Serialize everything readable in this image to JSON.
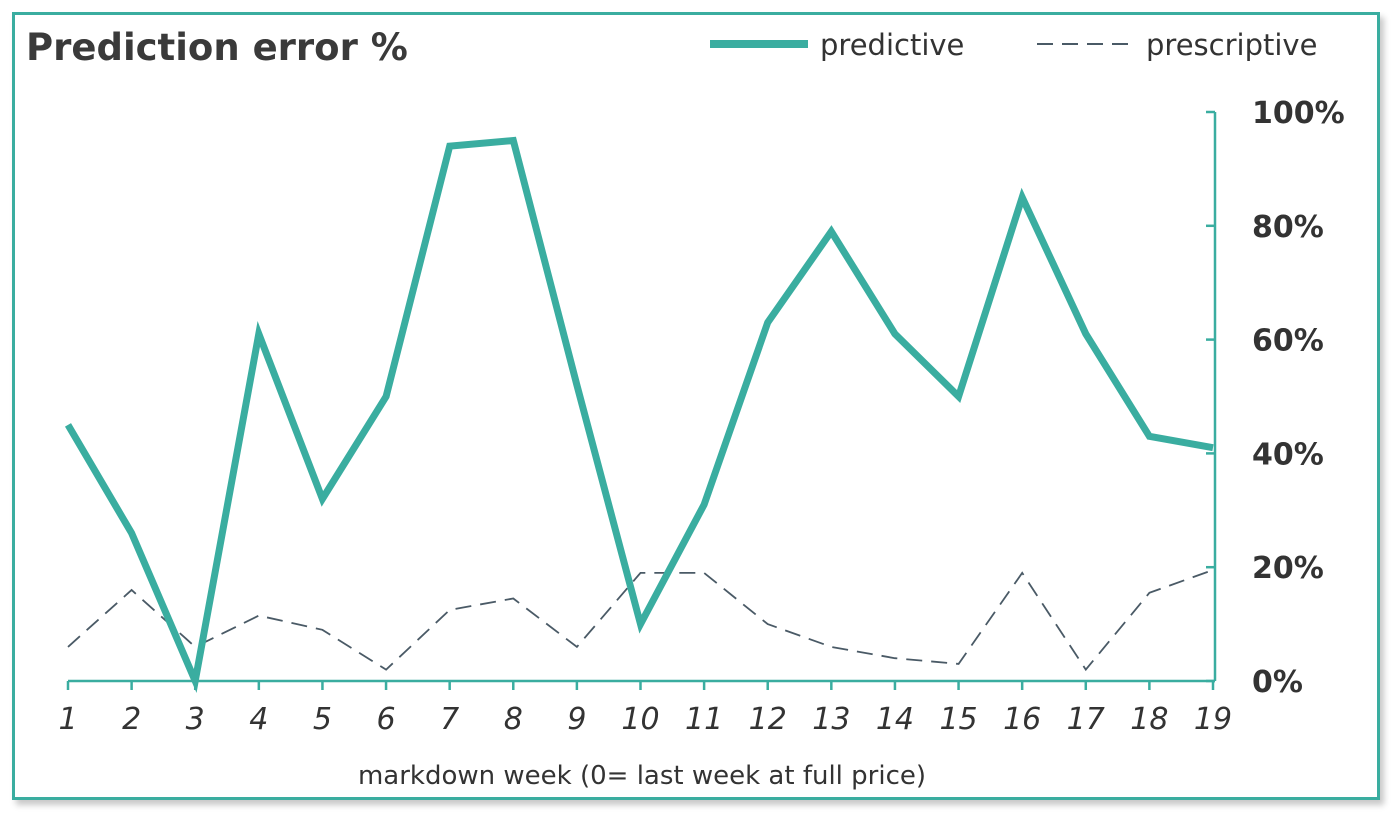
{
  "chart_data": {
    "type": "line",
    "title": "Prediction error %",
    "xlabel": "markdown  week (0= last week at full price)",
    "ylabel": "",
    "x": [
      1,
      2,
      3,
      4,
      5,
      6,
      7,
      8,
      9,
      10,
      11,
      12,
      13,
      14,
      15,
      16,
      17,
      18,
      19
    ],
    "categories": [
      "1",
      "2",
      "3",
      "4",
      "5",
      "6",
      "7",
      "8",
      "9",
      "10",
      "11",
      "12",
      "13",
      "14",
      "15",
      "16",
      "17",
      "18",
      "19"
    ],
    "ylim": [
      0,
      100
    ],
    "yticks": [
      0,
      20,
      40,
      60,
      80,
      100
    ],
    "ytick_labels": [
      "0%",
      "20%",
      "40%",
      "60%",
      "80%",
      "100%"
    ],
    "y_axis_position": "right",
    "grid": false,
    "legend_position": "top-right",
    "series": [
      {
        "name": "predictive",
        "color": "#3aada0",
        "style": "solid",
        "values": [
          45,
          26,
          0,
          61,
          32,
          50,
          94,
          95,
          52,
          10,
          31,
          63,
          79,
          61,
          50,
          85,
          61,
          43,
          41
        ]
      },
      {
        "name": "prescriptive",
        "color": "#4a5a66",
        "style": "dashed",
        "values": [
          6,
          16,
          6,
          11.5,
          9,
          2,
          12.5,
          14.5,
          6,
          19,
          19,
          10,
          6,
          4,
          3,
          19,
          2,
          15.5,
          19.5
        ]
      }
    ]
  }
}
